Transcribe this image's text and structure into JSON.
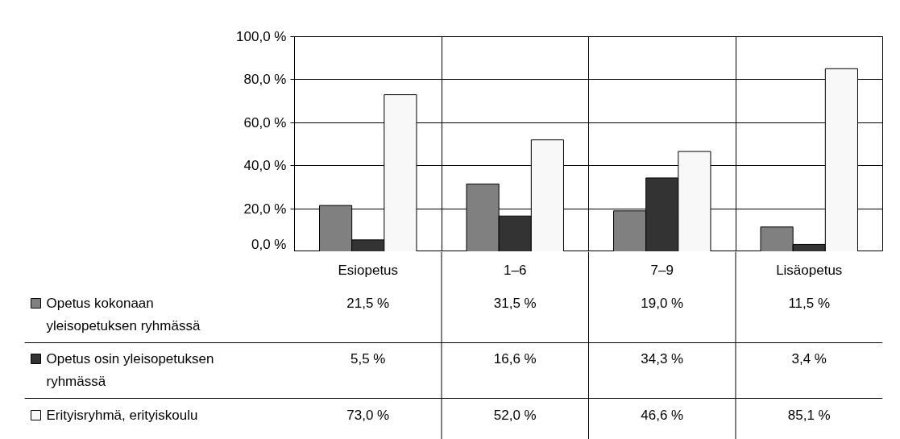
{
  "chart_data": {
    "type": "bar",
    "categories": [
      "Esiopetus",
      "1–6",
      "7–9",
      "Lisäopetus"
    ],
    "series": [
      {
        "name": "Opetus kokonaan yleisopetuksen ryhmässä",
        "color": "#808080",
        "values": [
          21.5,
          31.5,
          19.0,
          11.5
        ],
        "value_labels": [
          "21,5 %",
          "31,5 %",
          "19,0 %",
          "11,5 %"
        ]
      },
      {
        "name": "Opetus osin yleisopetuksen ryhmässä",
        "color": "#333333",
        "values": [
          5.5,
          16.6,
          34.3,
          3.4
        ],
        "value_labels": [
          "5,5 %",
          "16,6 %",
          "34,3 %",
          "3,4 %"
        ]
      },
      {
        "name": "Erityisryhmä, erityiskoulu",
        "color": "#f8f8f8",
        "values": [
          73.0,
          52.0,
          46.6,
          85.1
        ],
        "value_labels": [
          "73,0 %",
          "52,0 %",
          "46,6 %",
          "85,1 %"
        ]
      }
    ],
    "ylim": [
      0,
      100
    ],
    "yticks": [
      {
        "value": 0,
        "label": "0,0 %"
      },
      {
        "value": 20,
        "label": "20,0 %"
      },
      {
        "value": 40,
        "label": "40,0 %"
      },
      {
        "value": 60,
        "label": "60,0 %"
      },
      {
        "value": 80,
        "label": "80,0 %"
      },
      {
        "value": 100,
        "label": "100,0 %"
      }
    ],
    "grid": "y",
    "legend": "bottom"
  }
}
